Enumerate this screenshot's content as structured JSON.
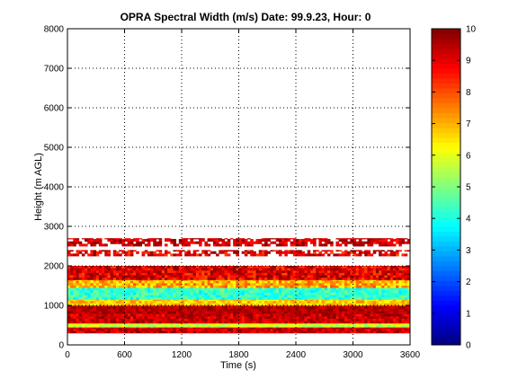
{
  "chart_data": {
    "type": "heatmap",
    "title": "OPRA Spectral Width (m/s)  Date: 99.9.23, Hour: 0",
    "xlabel": "Time (s)",
    "ylabel": "Height (m AGL)",
    "xlim": [
      0,
      3600
    ],
    "ylim": [
      0,
      8000
    ],
    "x_ticks": [
      0,
      600,
      1200,
      1800,
      2400,
      3000,
      3600
    ],
    "y_ticks": [
      0,
      1000,
      2000,
      3000,
      4000,
      5000,
      6000,
      7000,
      8000
    ],
    "grid": true,
    "colorbar": {
      "min": 0,
      "max": 10,
      "ticks": [
        0,
        1,
        2,
        3,
        4,
        5,
        6,
        7,
        8,
        9,
        10
      ],
      "colormap": "jet"
    },
    "bands": [
      {
        "height_range": [
          300,
          450
        ],
        "spectral_width_range": [
          8.5,
          10
        ]
      },
      {
        "height_range": [
          450,
          550
        ],
        "spectral_width_range": [
          5,
          6.5
        ]
      },
      {
        "height_range": [
          550,
          800
        ],
        "spectral_width_range": [
          8.5,
          10
        ]
      },
      {
        "height_range": [
          800,
          1000
        ],
        "spectral_width_range": [
          9,
          10
        ]
      },
      {
        "height_range": [
          1000,
          1150
        ],
        "spectral_width_range": [
          6,
          7.5
        ]
      },
      {
        "height_range": [
          1150,
          1450
        ],
        "spectral_width_range": [
          3.5,
          5
        ]
      },
      {
        "height_range": [
          1450,
          1650
        ],
        "spectral_width_range": [
          6,
          8
        ]
      },
      {
        "height_range": [
          1650,
          2000
        ],
        "spectral_width_range": [
          8,
          10
        ]
      },
      {
        "height_range": [
          2250,
          2400
        ],
        "spectral_width_range": [
          8,
          10
        ]
      },
      {
        "height_range": [
          2500,
          2700
        ],
        "spectral_width_range": [
          8.5,
          10
        ]
      }
    ]
  }
}
